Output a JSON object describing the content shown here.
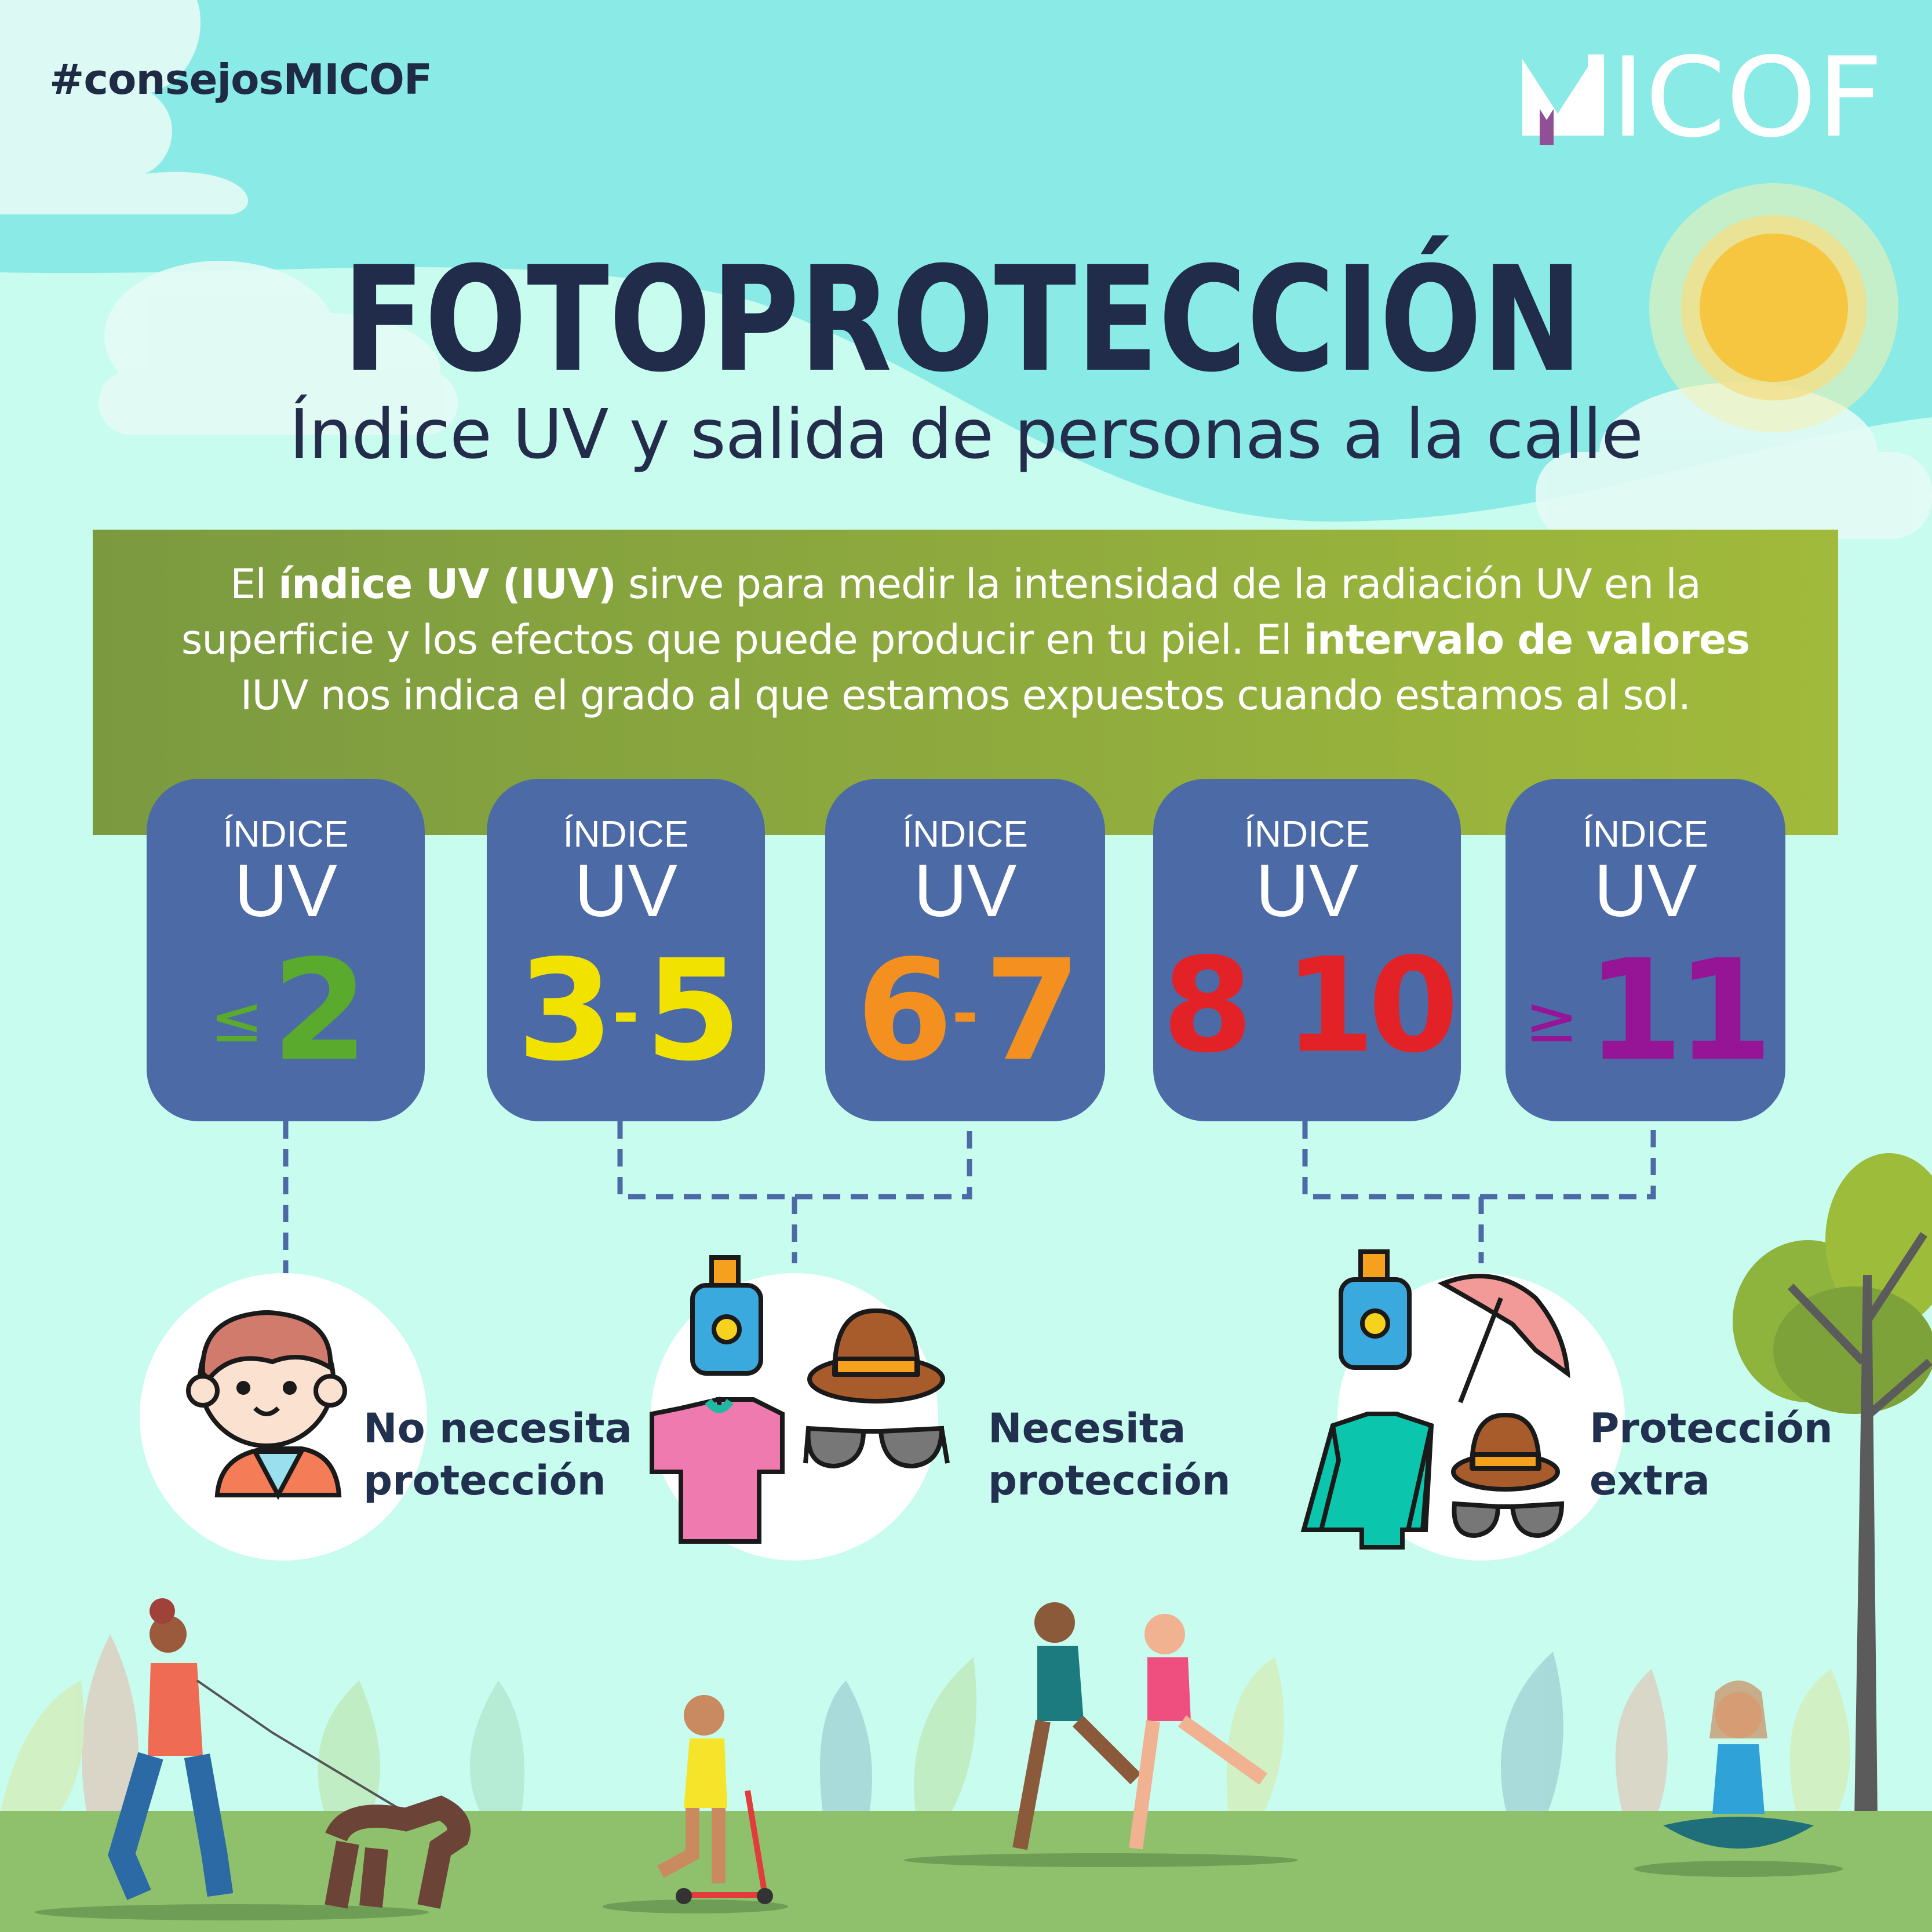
{
  "hashtag": "#consejosMICOF",
  "logo": {
    "text": "MICOF",
    "accent_color": "#914f96"
  },
  "title": "FOTOPROTECCIÓN",
  "subtitle": "Índice UV y salida de personas a la calle",
  "intro": {
    "line1_a": "El ",
    "line1_b": "índice UV (IUV)",
    "line1_c": " sirve para medir la intensidad de la radiación UV en la",
    "line2_a": "superficie y los efectos que puede producir en tu piel. El ",
    "line2_b": "intervalo de valores",
    "line3": "IUV nos indica el grado al que estamos expuestos cuando estamos al sol."
  },
  "uv_boxes": [
    {
      "label1": "ÍNDICE",
      "label2": "UV",
      "prefix": "≤",
      "from": "2",
      "sep": "",
      "to": "",
      "color": "#5aaa2e"
    },
    {
      "label1": "ÍNDICE",
      "label2": "UV",
      "prefix": "",
      "from": "3",
      "sep": "-",
      "to": "5",
      "color": "#f2e200"
    },
    {
      "label1": "ÍNDICE",
      "label2": "UV",
      "prefix": "",
      "from": "6",
      "sep": "-",
      "to": "7",
      "color": "#f3901f"
    },
    {
      "label1": "ÍNDICE",
      "label2": "UV",
      "prefix": "",
      "from": "8",
      "sep": " ",
      "to": "10",
      "color": "#e32228"
    },
    {
      "label1": "ÍNDICE",
      "label2": "UV",
      "prefix": "≥",
      "from": "11",
      "sep": "",
      "to": "",
      "color": "#961496"
    }
  ],
  "protection": [
    {
      "line1": "No necesita",
      "line2": "protección",
      "icons": [
        "boy-face-icon"
      ]
    },
    {
      "line1": "Necesita",
      "line2": "protección",
      "icons": [
        "sunscreen-icon",
        "hat-icon",
        "tshirt-icon",
        "sunglasses-icon"
      ]
    },
    {
      "line1": "Protección",
      "line2": "extra",
      "icons": [
        "sunscreen-icon",
        "umbrella-icon",
        "long-sleeve-shirt-icon",
        "hat-icon",
        "sunglasses-icon"
      ]
    }
  ],
  "colors": {
    "sky": "#8aeae6",
    "mint": "#c8fcef",
    "band": "#8aab3d",
    "box": "#4c6aa5",
    "title": "#212c4a",
    "ground": "#8fc06c"
  }
}
